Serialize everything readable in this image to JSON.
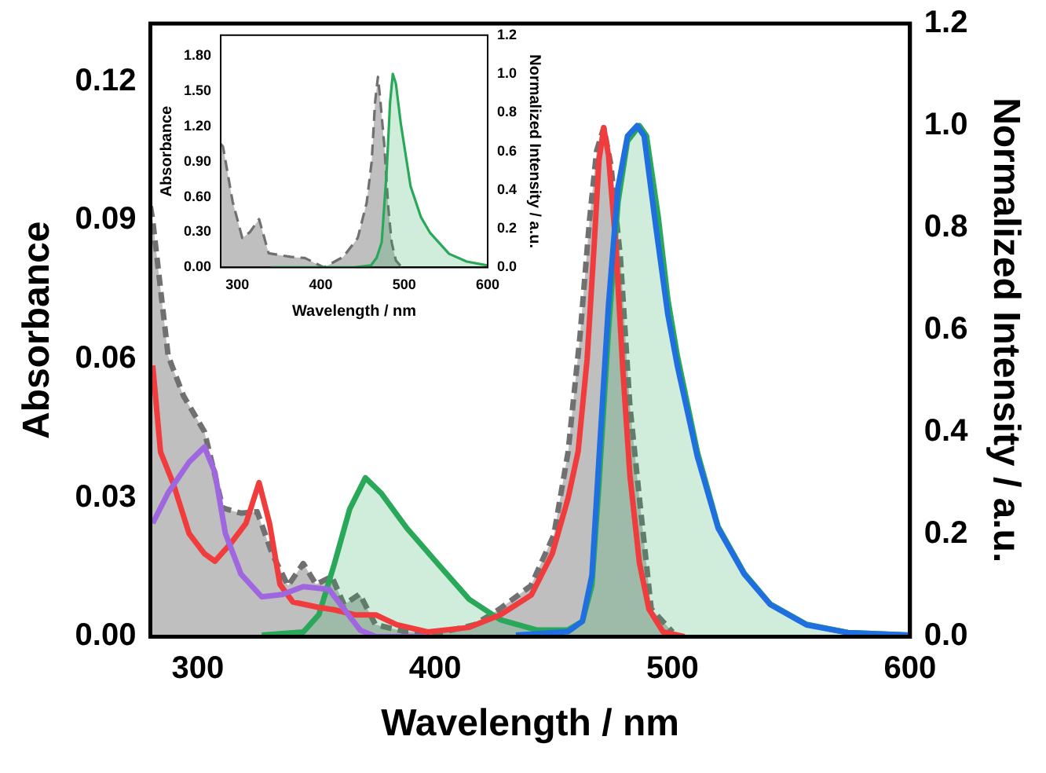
{
  "chart_data": [
    {
      "type": "line",
      "xlabel": "Wavelength / nm",
      "ylabel": "Absorbance",
      "y2label": "Normalized Intensity / a.u.",
      "xlim": [
        280,
        600
      ],
      "xticks": [
        300,
        400,
        500,
        600
      ],
      "ylim": [
        0,
        0.1325
      ],
      "yticks": [
        {
          "value": 0,
          "label": "0.00"
        },
        {
          "value": 0.03,
          "label": "0.03"
        },
        {
          "value": 0.06,
          "label": "0.06"
        },
        {
          "value": 0.09,
          "label": "0.09"
        },
        {
          "value": 0.12,
          "label": "0.12"
        }
      ],
      "y2lim": [
        0,
        1.2
      ],
      "y2ticks": [
        {
          "value": 0,
          "label": "0.0"
        },
        {
          "value": 0.2,
          "label": "0.2"
        },
        {
          "value": 0.4,
          "label": "0.4"
        },
        {
          "value": 0.6,
          "label": "0.6"
        },
        {
          "value": 0.8,
          "label": "0.8"
        },
        {
          "value": 1,
          "label": "1.0"
        },
        {
          "value": 1.2,
          "label": "1.2"
        }
      ],
      "grid": false,
      "legend": false,
      "marker": "none",
      "series": [
        {
          "type": "area",
          "color": "#707070",
          "line_style": "dashed",
          "x": [
            280,
            281,
            287.5,
            294,
            302.8,
            310.5,
            318.2,
            325,
            331.3,
            338,
            344.4,
            349.8,
            356.4,
            361.6,
            368.2,
            374.8,
            387.9,
            403.6,
            416.7,
            427.2,
            440.3,
            450,
            456,
            461,
            465,
            468,
            471,
            474,
            478,
            482,
            486,
            491,
            500
          ],
          "values": [
            0.093,
            0.09,
            0.0607,
            0.052,
            0.0443,
            0.0278,
            0.0267,
            0.027,
            0.0179,
            0.011,
            0.0158,
            0.0113,
            0.013,
            0.0069,
            0.0092,
            0.0026,
            0.001,
            0.001,
            0.0026,
            0.006,
            0.011,
            0.022,
            0.04,
            0.065,
            0.09,
            0.105,
            0.11,
            0.102,
            0.082,
            0.05,
            0.03,
            0.006,
            0.001
          ]
        },
        {
          "type": "line",
          "color": "#f03c3c",
          "x": [
            281,
            284.3,
            289.7,
            296.3,
            302.8,
            307.2,
            313.8,
            320.3,
            325.8,
            330.2,
            334.6,
            340,
            351,
            357.5,
            366.2,
            375,
            383.7,
            396.9,
            414.3,
            427.4,
            440.5,
            449.3,
            456,
            460.2,
            464,
            467,
            469,
            471,
            473,
            476,
            479,
            482,
            486,
            490,
            496,
            505
          ],
          "values": [
            0.0586,
            0.0399,
            0.033,
            0.0223,
            0.0179,
            0.0163,
            0.0201,
            0.0245,
            0.0333,
            0.0245,
            0.0113,
            0.0075,
            0.0063,
            0.0058,
            0.0047,
            0.0047,
            0.0026,
            0.001,
            0.002,
            0.0047,
            0.009,
            0.0179,
            0.03,
            0.04,
            0.06,
            0.085,
            0.103,
            0.11,
            0.104,
            0.085,
            0.058,
            0.035,
            0.016,
            0.006,
            0.001,
            0
          ]
        },
        {
          "type": "line",
          "color": "#a066e0",
          "x": [
            281,
            287.5,
            296.3,
            302.8,
            307.2,
            311.6,
            318.2,
            326.9,
            335.6,
            344.4,
            355.3,
            361.8,
            368.4,
            375,
            396
          ],
          "values": [
            0.0245,
            0.0311,
            0.0377,
            0.041,
            0.0355,
            0.0223,
            0.0135,
            0.0086,
            0.0091,
            0.0108,
            0.0102,
            0.0058,
            0.0014,
            0,
            0
          ]
        },
        {
          "type": "area",
          "color": "#2aa85a",
          "axis": "y2",
          "x": [
            326.9,
            344.4,
            351,
            357.5,
            364,
            370.6,
            377.2,
            388.1,
            401.2,
            414.3,
            427.4,
            442.7,
            455.8,
            462,
            466,
            469,
            473,
            477,
            481,
            486,
            489,
            494,
            498,
            502,
            510.5,
            519.2,
            530.2,
            541.1,
            556.4,
            573.8,
            600
          ],
          "values": [
            0.003,
            0.009,
            0.043,
            0.142,
            0.25,
            0.311,
            0.281,
            0.212,
            0.142,
            0.073,
            0.033,
            0.013,
            0.013,
            0.03,
            0.1,
            0.3,
            0.6,
            0.85,
            0.97,
            1.0,
            0.98,
            0.82,
            0.66,
            0.55,
            0.36,
            0.215,
            0.124,
            0.064,
            0.024,
            0.008,
            0.003
          ]
        },
        {
          "type": "line",
          "color": "#1f6fe0",
          "axis": "y2",
          "x": [
            434,
            456,
            462,
            466,
            469,
            473,
            477,
            481,
            485,
            488,
            493,
            498,
            502,
            510.5,
            519.2,
            530.2,
            541.1,
            556.4,
            573.8,
            600
          ],
          "values": [
            0.003,
            0.01,
            0.03,
            0.12,
            0.35,
            0.65,
            0.88,
            0.98,
            1.0,
            0.98,
            0.8,
            0.63,
            0.53,
            0.351,
            0.212,
            0.122,
            0.063,
            0.023,
            0.008,
            0.003
          ]
        }
      ]
    },
    {
      "type": "line",
      "xlabel": "Wavelength / nm",
      "ylabel": "Absorbance",
      "y2label": "Normalized Intensity / a.u.",
      "xlim": [
        280,
        600
      ],
      "xticks": [
        300,
        400,
        500,
        600
      ],
      "ylim": [
        0,
        1.975
      ],
      "yticks": [
        {
          "value": 0,
          "label": "0.00"
        },
        {
          "value": 0.3,
          "label": "0.30"
        },
        {
          "value": 0.6,
          "label": "0.60"
        },
        {
          "value": 0.9,
          "label": "0.90"
        },
        {
          "value": 1.2,
          "label": "1.20"
        },
        {
          "value": 1.5,
          "label": "1.50"
        },
        {
          "value": 1.8,
          "label": "1.80"
        }
      ],
      "y2lim": [
        0,
        1.2
      ],
      "y2ticks": [
        {
          "value": 0,
          "label": "0.0"
        },
        {
          "value": 0.2,
          "label": "0.2"
        },
        {
          "value": 0.4,
          "label": "0.4"
        },
        {
          "value": 0.6,
          "label": "0.6"
        },
        {
          "value": 0.8,
          "label": "0.8"
        },
        {
          "value": 1,
          "label": "1.0"
        },
        {
          "value": 1.2,
          "label": "1.2"
        }
      ],
      "grid": false,
      "legend": false,
      "marker": "none",
      "series": [
        {
          "type": "area",
          "color": "#707070",
          "line_style": "dashed",
          "x": [
            280,
            282.7,
            294.3,
            305.9,
            315,
            326,
            337.5,
            363.5,
            380.8,
            403.8,
            427,
            444.3,
            455,
            461,
            465,
            468.5,
            471,
            476,
            481,
            485,
            490,
            497
          ],
          "values": [
            1.05,
            1.03,
            0.56,
            0.25,
            0.3,
            0.41,
            0.12,
            0.09,
            0.08,
            0.0,
            0.09,
            0.25,
            0.55,
            0.9,
            1.4,
            1.62,
            1.45,
            1.05,
            0.5,
            0.21,
            0.06,
            0
          ]
        },
        {
          "type": "area",
          "color": "#2aa85a",
          "axis": "y2",
          "x": [
            340,
            440,
            460,
            467,
            473,
            479,
            483,
            486.3,
            490,
            496,
            507.6,
            520,
            530.8,
            553.8,
            575,
            600
          ],
          "values": [
            0,
            0,
            0.01,
            0.05,
            0.13,
            0.5,
            0.85,
            1.0,
            0.95,
            0.74,
            0.42,
            0.26,
            0.18,
            0.07,
            0.03,
            0.01
          ]
        }
      ]
    }
  ]
}
